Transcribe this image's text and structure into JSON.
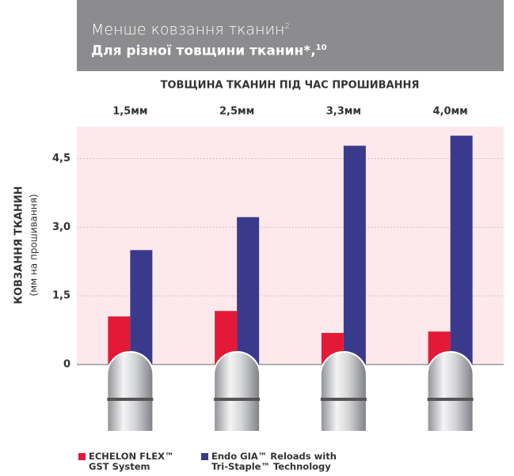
{
  "chart_data": {
    "type": "bar",
    "title": "Менше ковзання тканин",
    "title_note": "2",
    "subtitle": "Для різної товщини тканин*,",
    "subtitle_note": "10",
    "x_label": "ТОВЩИНА ТКАНИН ПІД ЧАС ПРОШИВАННЯ",
    "y_label": "КОВЗАННЯ ТКАНИН",
    "y_sublabel": "(мм на прошивання)",
    "categories": [
      "1,5мм",
      "2,5мм",
      "3,3мм",
      "4,0мм"
    ],
    "series": [
      {
        "name": "ECHELON FLEX™ GST System",
        "color": "#e31937",
        "values": [
          1.05,
          1.17,
          0.69,
          0.72
        ]
      },
      {
        "name": "Endo GIA™ Reloads with Tri-Staple™ Technology",
        "color": "#3a3a8c",
        "values": [
          2.5,
          3.22,
          4.78,
          5.0
        ]
      }
    ],
    "ylim": [
      0,
      5.2
    ],
    "yticks": [
      0,
      {
        "value": 1.5,
        "label": "1,5"
      },
      {
        "value": 3,
        "label": "3,0"
      },
      {
        "value": 4.5,
        "label": "4,5"
      }
    ],
    "grid": true
  }
}
